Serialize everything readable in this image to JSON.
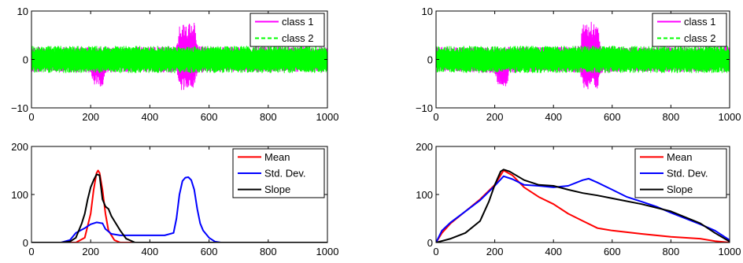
{
  "chart_data": [
    {
      "type": "line",
      "xlim": [
        0,
        1000
      ],
      "ylim": [
        -10,
        10
      ],
      "xticks": [
        "0",
        "200",
        "400",
        "600",
        "800",
        "1000"
      ],
      "yticks": [
        "-10",
        "0",
        "10"
      ],
      "grid": false,
      "legend": "top-right",
      "series": [
        {
          "name": "class 1",
          "color": "#ff00ff",
          "style": "solid",
          "x": [
            0,
            100,
            200,
            210,
            240,
            250,
            300,
            400,
            490,
            500,
            550,
            560,
            600,
            700,
            800,
            900,
            1000
          ],
          "upper": [
            2.6,
            2.6,
            2.6,
            2.6,
            2.6,
            2.6,
            2.6,
            2.6,
            2.8,
            7.5,
            8.0,
            3.0,
            2.6,
            2.6,
            2.6,
            2.6,
            2.6
          ],
          "lower": [
            -2.6,
            -2.6,
            -2.8,
            -5.5,
            -5.8,
            -2.8,
            -2.6,
            -2.6,
            -2.8,
            -6.5,
            -6.0,
            -3.0,
            -2.6,
            -2.6,
            -2.6,
            -2.6,
            -2.6
          ]
        },
        {
          "name": "class 2",
          "color": "#00ff00",
          "style": "dashed",
          "x": [
            0,
            1000
          ],
          "upper": [
            2.8,
            2.8
          ],
          "lower": [
            -2.8,
            -2.8
          ]
        }
      ]
    },
    {
      "type": "line",
      "xlim": [
        0,
        1000
      ],
      "ylim": [
        -10,
        10
      ],
      "xticks": [
        "0",
        "200",
        "400",
        "600",
        "800",
        "1000"
      ],
      "yticks": [
        "-10",
        "0",
        "10"
      ],
      "grid": false,
      "legend": "top-right",
      "series": [
        {
          "name": "class 1",
          "color": "#ff00ff",
          "style": "solid",
          "x": [
            0,
            100,
            200,
            210,
            240,
            250,
            300,
            400,
            490,
            500,
            550,
            560,
            600,
            700,
            800,
            900,
            1000
          ],
          "upper": [
            2.6,
            2.6,
            2.6,
            2.6,
            2.6,
            2.6,
            2.6,
            2.6,
            2.8,
            7.5,
            8.0,
            3.0,
            2.6,
            2.6,
            2.6,
            2.6,
            2.6
          ],
          "lower": [
            -2.6,
            -2.6,
            -2.8,
            -5.5,
            -5.8,
            -2.8,
            -2.6,
            -2.6,
            -2.8,
            -6.5,
            -6.0,
            -3.0,
            -2.6,
            -2.6,
            -2.6,
            -2.6,
            -2.6
          ]
        },
        {
          "name": "class 2",
          "color": "#00ff00",
          "style": "dashed",
          "x": [
            0,
            1000
          ],
          "upper": [
            2.8,
            2.8
          ],
          "lower": [
            -2.8,
            -2.8
          ]
        }
      ]
    },
    {
      "type": "line",
      "xlim": [
        0,
        1000
      ],
      "ylim": [
        0,
        200
      ],
      "xticks": [
        "0",
        "200",
        "400",
        "600",
        "800",
        "1000"
      ],
      "yticks": [
        "0",
        "100",
        "200"
      ],
      "grid": false,
      "legend": "top-right",
      "series": [
        {
          "name": "Mean",
          "color": "#ff0000",
          "x": [
            0,
            150,
            180,
            200,
            210,
            220,
            225,
            230,
            240,
            250,
            260,
            280,
            300,
            1000
          ],
          "y": [
            0,
            0,
            10,
            60,
            110,
            145,
            150,
            145,
            110,
            60,
            25,
            5,
            0,
            0
          ]
        },
        {
          "name": "Std. Dev.",
          "color": "#0000ff",
          "x": [
            0,
            100,
            130,
            150,
            180,
            200,
            220,
            240,
            250,
            270,
            300,
            350,
            450,
            480,
            490,
            500,
            510,
            520,
            530,
            540,
            550,
            560,
            570,
            580,
            600,
            620,
            640,
            1000
          ],
          "y": [
            0,
            0,
            5,
            20,
            30,
            38,
            42,
            40,
            28,
            18,
            15,
            15,
            15,
            20,
            50,
            100,
            128,
            135,
            136,
            130,
            110,
            70,
            40,
            25,
            10,
            2,
            0,
            0
          ]
        },
        {
          "name": "Slope",
          "color": "#000000",
          "x": [
            0,
            100,
            130,
            150,
            170,
            180,
            190,
            200,
            210,
            220,
            230,
            240,
            250,
            260,
            270,
            280,
            300,
            320,
            350,
            1000
          ],
          "y": [
            0,
            0,
            2,
            10,
            40,
            60,
            90,
            115,
            130,
            142,
            140,
            90,
            75,
            70,
            55,
            45,
            25,
            8,
            0,
            0
          ]
        }
      ]
    },
    {
      "type": "line",
      "xlim": [
        0,
        1000
      ],
      "ylim": [
        0,
        200
      ],
      "xticks": [
        "0",
        "200",
        "400",
        "600",
        "800",
        "1000"
      ],
      "yticks": [
        "0",
        "100",
        "200"
      ],
      "grid": false,
      "legend": "top-right",
      "series": [
        {
          "name": "Mean",
          "color": "#ff0000",
          "x": [
            0,
            20,
            50,
            100,
            150,
            200,
            230,
            260,
            300,
            350,
            400,
            450,
            500,
            550,
            600,
            700,
            800,
            900,
            950,
            1000
          ],
          "y": [
            0,
            20,
            40,
            65,
            90,
            120,
            150,
            140,
            115,
            95,
            80,
            60,
            45,
            30,
            25,
            18,
            12,
            8,
            3,
            0
          ]
        },
        {
          "name": "Std. Dev.",
          "color": "#0000ff",
          "x": [
            0,
            20,
            50,
            100,
            150,
            200,
            230,
            260,
            300,
            350,
            400,
            450,
            500,
            520,
            550,
            600,
            650,
            700,
            750,
            800,
            850,
            900,
            950,
            1000
          ],
          "y": [
            0,
            25,
            42,
            65,
            88,
            118,
            138,
            132,
            120,
            118,
            115,
            118,
            130,
            133,
            125,
            110,
            95,
            85,
            75,
            62,
            50,
            38,
            25,
            5
          ]
        },
        {
          "name": "Slope",
          "color": "#000000",
          "x": [
            0,
            50,
            100,
            150,
            180,
            200,
            220,
            230,
            250,
            300,
            350,
            400,
            450,
            500,
            550,
            600,
            700,
            800,
            900,
            950,
            1000
          ],
          "y": [
            0,
            8,
            20,
            45,
            85,
            120,
            148,
            152,
            148,
            130,
            120,
            118,
            110,
            103,
            98,
            92,
            80,
            65,
            40,
            20,
            2
          ]
        }
      ]
    }
  ]
}
